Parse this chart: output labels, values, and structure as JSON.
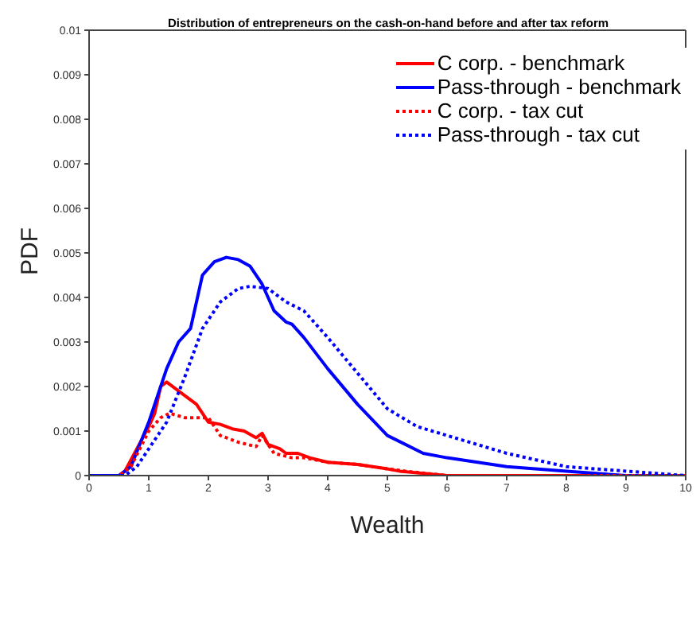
{
  "chart_data": {
    "type": "line",
    "title": "Distribution of entrepreneurs on the cash-on-hand before and after tax reform",
    "xlabel": "Wealth",
    "ylabel": "PDF",
    "xlim": [
      0,
      10
    ],
    "xticks": [
      0,
      1,
      2,
      3,
      4,
      5,
      6,
      7,
      8,
      9,
      10
    ],
    "ylim": [
      0,
      0.01
    ],
    "yticks": [
      0,
      0.001,
      0.002,
      0.003,
      0.004,
      0.005,
      0.006,
      0.007,
      0.008,
      0.009,
      0.01
    ],
    "grid": false,
    "legend": "top right",
    "marker": "none",
    "series": [
      {
        "name": "C corp. - benchmark",
        "color": "#ff0000",
        "line_style": "solid",
        "x": [
          0,
          0.5,
          0.6,
          0.8,
          1.0,
          1.1,
          1.2,
          1.3,
          1.5,
          1.8,
          2.0,
          2.2,
          2.4,
          2.6,
          2.8,
          2.9,
          3.0,
          3.2,
          3.3,
          3.5,
          3.7,
          4.0,
          4.5,
          5.0,
          5.2,
          6,
          7,
          10
        ],
        "values": [
          0,
          0,
          0.0001,
          0.0006,
          0.0011,
          0.0014,
          0.002,
          0.0021,
          0.0019,
          0.0016,
          0.0012,
          0.00115,
          0.00105,
          0.001,
          0.00085,
          0.00095,
          0.0007,
          0.0006,
          0.0005,
          0.0005,
          0.0004,
          0.0003,
          0.00025,
          0.00015,
          0.0001,
          0,
          0,
          0
        ]
      },
      {
        "name": "Pass-through - benchmark",
        "color": "#0000ff",
        "line_style": "solid",
        "x": [
          0,
          0.5,
          0.7,
          1.0,
          1.3,
          1.5,
          1.7,
          1.9,
          2.1,
          2.3,
          2.5,
          2.7,
          2.9,
          3.1,
          3.3,
          3.4,
          3.6,
          4.0,
          4.5,
          5.0,
          5.6,
          6.0,
          7.0,
          8.0,
          9,
          10
        ],
        "values": [
          0,
          0,
          0.0002,
          0.0012,
          0.0024,
          0.003,
          0.0033,
          0.0045,
          0.0048,
          0.0049,
          0.00485,
          0.0047,
          0.0043,
          0.0037,
          0.00345,
          0.0034,
          0.0031,
          0.0024,
          0.0016,
          0.0009,
          0.0005,
          0.0004,
          0.0002,
          0.0001,
          0,
          0
        ]
      },
      {
        "name": "C corp. - tax cut",
        "color": "#ff0000",
        "line_style": "dotted",
        "x": [
          0,
          0.5,
          0.7,
          1.0,
          1.2,
          1.35,
          1.6,
          2.0,
          2.2,
          2.5,
          2.8,
          2.9,
          3.1,
          3.4,
          3.6,
          4.0,
          4.5,
          5.0,
          5.3,
          6,
          10
        ],
        "values": [
          0,
          0,
          0.0002,
          0.001,
          0.0013,
          0.0014,
          0.0013,
          0.0013,
          0.0009,
          0.00075,
          0.00065,
          0.0009,
          0.0005,
          0.0004,
          0.0004,
          0.0003,
          0.00025,
          0.00015,
          0.0001,
          0,
          0
        ]
      },
      {
        "name": "Pass-through - tax cut",
        "color": "#0000ff",
        "line_style": "dotted",
        "x": [
          0,
          0.6,
          0.8,
          1.0,
          1.3,
          1.6,
          1.9,
          2.2,
          2.5,
          2.7,
          3.0,
          3.3,
          3.6,
          4.0,
          4.5,
          5.0,
          5.5,
          6.0,
          6.5,
          7,
          8,
          9,
          10
        ],
        "values": [
          0,
          0,
          0.0002,
          0.0006,
          0.0012,
          0.0022,
          0.0033,
          0.0039,
          0.0042,
          0.00425,
          0.0042,
          0.0039,
          0.0037,
          0.0031,
          0.0023,
          0.0015,
          0.0011,
          0.0009,
          0.0007,
          0.0005,
          0.0002,
          0.0001,
          0
        ]
      }
    ]
  }
}
